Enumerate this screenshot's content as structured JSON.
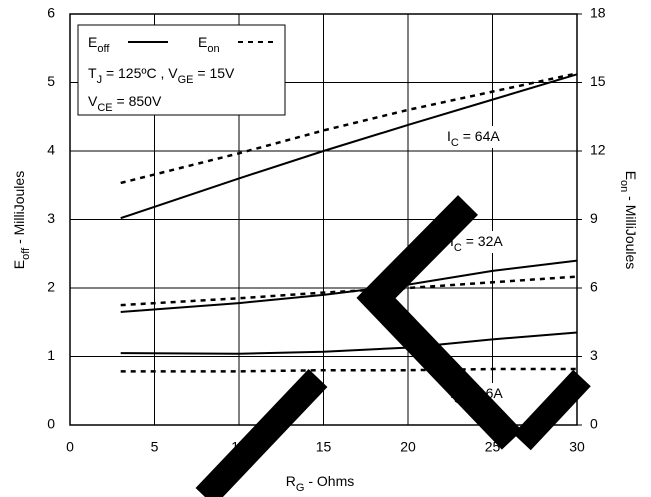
{
  "chart_data": {
    "type": "line",
    "x_label": [
      {
        "text": "R",
        "sub": false
      },
      {
        "text": "G",
        "sub": true
      },
      {
        "text": " - Ohms",
        "sub": false
      }
    ],
    "y_label": [
      {
        "text": "E",
        "sub": false
      },
      {
        "text": "off",
        "sub": true
      },
      {
        "text": " - MilliJoules",
        "sub": false
      }
    ],
    "y2_label": [
      {
        "text": "E",
        "sub": false
      },
      {
        "text": "on",
        "sub": true
      },
      {
        "text": " - MilliJoules",
        "sub": false
      }
    ],
    "xlim": [
      0,
      30
    ],
    "xticks": [
      0,
      5,
      10,
      15,
      20,
      25,
      30
    ],
    "ylim": [
      0,
      6
    ],
    "yticks": [
      0,
      1,
      2,
      3,
      4,
      5,
      6
    ],
    "y2lim": [
      0,
      18
    ],
    "y2ticks": [
      0,
      3,
      6,
      9,
      12,
      15,
      18
    ],
    "grid": true,
    "legend": [
      {
        "label": [
          {
            "text": "E",
            "sub": false
          },
          {
            "text": "off",
            "sub": true
          }
        ],
        "dashed": false
      },
      {
        "label": [
          {
            "text": "E",
            "sub": false
          },
          {
            "text": "on",
            "sub": true
          }
        ],
        "dashed": true
      }
    ],
    "conditions": [
      [
        {
          "text": "T",
          "sub": false
        },
        {
          "text": "J",
          "sub": true
        },
        {
          "text": " = 125ºC , V",
          "sub": false
        },
        {
          "text": "GE",
          "sub": true
        },
        {
          "text": " = 15V",
          "sub": false
        }
      ],
      [
        {
          "text": "V",
          "sub": false
        },
        {
          "text": "CE",
          "sub": true
        },
        {
          "text": " = 850V",
          "sub": false
        }
      ]
    ],
    "annotations": [
      [
        {
          "text": "I",
          "sub": false
        },
        {
          "text": "C",
          "sub": true
        },
        {
          "text": " = 64A",
          "sub": false
        }
      ],
      [
        {
          "text": "I",
          "sub": false
        },
        {
          "text": "C",
          "sub": true
        },
        {
          "text": " = 32A",
          "sub": false
        }
      ],
      [
        {
          "text": "I",
          "sub": false
        },
        {
          "text": "C",
          "sub": true
        },
        {
          "text": " = 16A",
          "sub": false
        }
      ]
    ],
    "x": [
      3,
      10,
      15,
      20,
      25,
      30
    ],
    "series": [
      {
        "color": "#000000",
        "dashed": false,
        "values": [
          3.02,
          3.6,
          4.0,
          4.38,
          4.75,
          5.12
        ]
      },
      {
        "color": "#000000",
        "dashed": false,
        "values": [
          1.65,
          1.78,
          1.9,
          2.05,
          2.25,
          2.4
        ]
      },
      {
        "color": "#000000",
        "dashed": false,
        "values": [
          1.05,
          1.04,
          1.07,
          1.13,
          1.25,
          1.35
        ]
      },
      {
        "color": "#000000",
        "dashed": true,
        "axis": "y2",
        "values": [
          10.6,
          11.9,
          12.9,
          13.8,
          14.6,
          15.4
        ]
      },
      {
        "color": "#000000",
        "dashed": true,
        "axis": "y2",
        "values": [
          5.25,
          5.55,
          5.8,
          6.0,
          6.25,
          6.5
        ]
      },
      {
        "color": "#000000",
        "dashed": true,
        "axis": "y2",
        "values": [
          2.35,
          2.35,
          2.4,
          2.4,
          2.45,
          2.45
        ]
      }
    ]
  }
}
